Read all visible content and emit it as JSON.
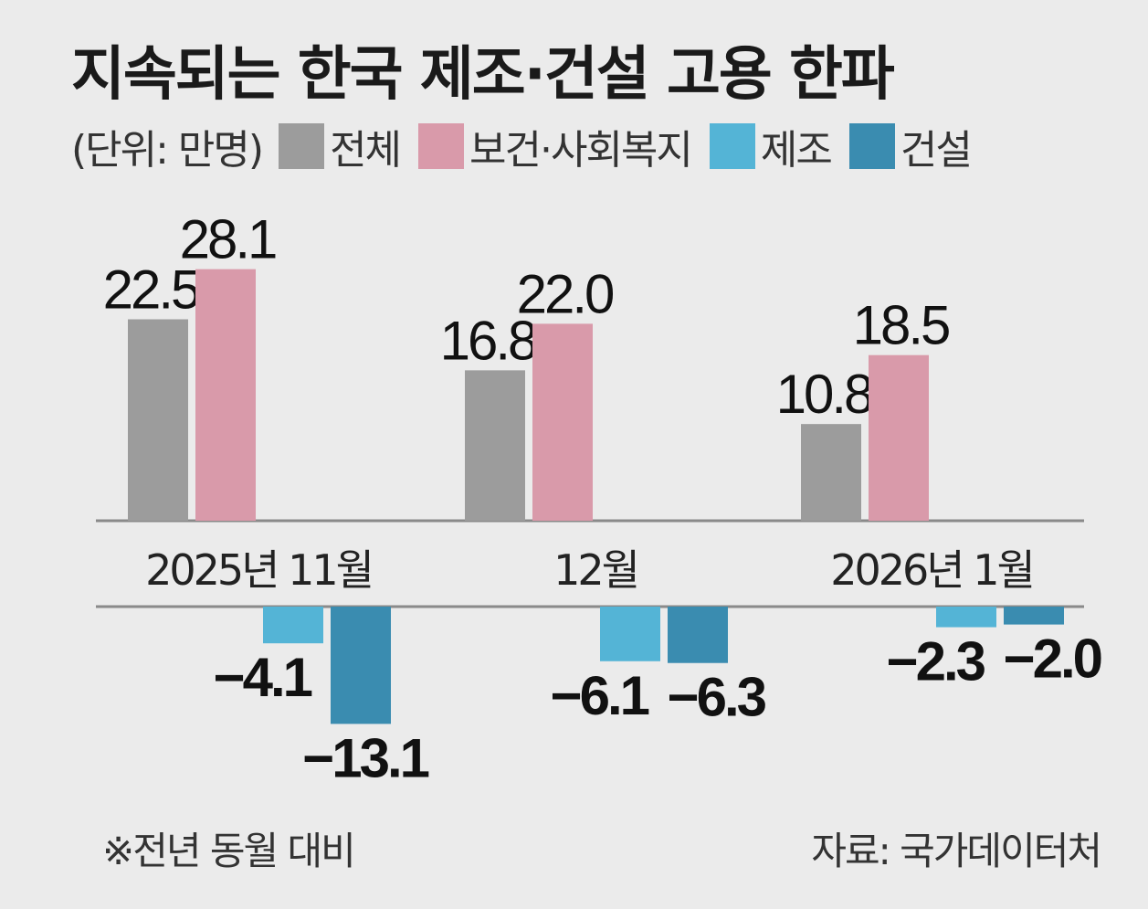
{
  "title": "지속되는 한국 제조·건설 고용 한파",
  "legend": {
    "unit": "(단위: 만명)",
    "items": [
      {
        "label": "전체",
        "color": "#9c9c9c"
      },
      {
        "label": "보건·사회복지",
        "color": "#d99aaa"
      },
      {
        "label": "제조",
        "color": "#54b4d6"
      },
      {
        "label": "건설",
        "color": "#3a8cb0"
      }
    ]
  },
  "chart_data": {
    "type": "bar",
    "title": "지속되는 한국 제조·건설 고용 한파",
    "unit": "만명",
    "categories": [
      "2025년 11월",
      "12월",
      "2026년 1월"
    ],
    "series": [
      {
        "name": "전체",
        "values": [
          22.5,
          16.8,
          10.8
        ],
        "labels": [
          "22.5",
          "16.8",
          "10.8"
        ]
      },
      {
        "name": "보건·사회복지",
        "values": [
          28.1,
          22.0,
          18.5
        ],
        "labels": [
          "28.1",
          "22.0",
          "18.5"
        ]
      },
      {
        "name": "제조",
        "values": [
          -4.1,
          -6.1,
          -2.3
        ],
        "labels": [
          "−4.1",
          "−6.1",
          "−2.3"
        ]
      },
      {
        "name": "건설",
        "values": [
          -13.1,
          -6.3,
          -2.0
        ],
        "labels": [
          "−13.1",
          "−6.3",
          "−2.0"
        ]
      }
    ]
  },
  "footnote": "※전년 동월 대비",
  "source": "자료: 국가데이터처"
}
